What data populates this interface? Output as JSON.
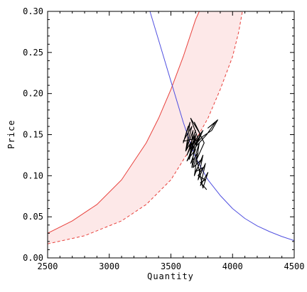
{
  "chart_data": {
    "type": "line",
    "title": "",
    "xlabel": "Quantity",
    "ylabel": "Price",
    "xlim": [
      2500,
      4500
    ],
    "ylim": [
      0.0,
      0.3
    ],
    "xticks": [
      "2500",
      "3000",
      "3500",
      "4000",
      "4500"
    ],
    "yticks": [
      "0.00",
      "0.05",
      "0.10",
      "0.15",
      "0.20",
      "0.25",
      "0.30"
    ],
    "grid": false,
    "legend": "none",
    "band": {
      "fill_color": "#fde8e8",
      "upper_color": "#e8413c",
      "lower_color": "#e8413c",
      "upper": {
        "x": [
          2500,
          2700,
          2900,
          3100,
          3300,
          3400,
          3500,
          3600,
          3700,
          3730
        ],
        "y": [
          0.03,
          0.045,
          0.065,
          0.095,
          0.14,
          0.17,
          0.205,
          0.245,
          0.29,
          0.3
        ]
      },
      "lower": {
        "x": [
          2500,
          2800,
          3100,
          3300,
          3500,
          3700,
          3800,
          3900,
          4000,
          4050,
          4080
        ],
        "y": [
          0.017,
          0.027,
          0.045,
          0.065,
          0.095,
          0.143,
          0.17,
          0.205,
          0.245,
          0.275,
          0.3
        ]
      }
    },
    "series": [
      {
        "color": "#5050e0",
        "x": [
          3330,
          3400,
          3500,
          3550,
          3600,
          3650,
          3700,
          3800,
          3900,
          4000,
          4100,
          4200,
          4300,
          4400,
          4500
        ],
        "y": [
          0.3,
          0.265,
          0.215,
          0.19,
          0.165,
          0.143,
          0.122,
          0.095,
          0.076,
          0.06,
          0.048,
          0.039,
          0.032,
          0.026,
          0.021
        ]
      },
      {
        "color": "#000000",
        "x": [
          3610,
          3640,
          3600,
          3655,
          3620,
          3680,
          3650,
          3700,
          3670,
          3730,
          3690,
          3760,
          3720,
          3780,
          3740,
          3800,
          3760,
          3710,
          3770,
          3690,
          3740,
          3660,
          3720,
          3650,
          3700,
          3630,
          3690,
          3600,
          3670,
          3620,
          3700,
          3640,
          3680,
          3760,
          3700,
          3790,
          3860,
          3800,
          3880,
          3830,
          3760,
          3700,
          3740,
          3690,
          3720,
          3650,
          3700,
          3640,
          3680,
          3630,
          3700,
          3660,
          3720,
          3680,
          3750,
          3700,
          3760,
          3720,
          3780,
          3740,
          3790
        ],
        "y": [
          0.145,
          0.16,
          0.14,
          0.165,
          0.13,
          0.155,
          0.12,
          0.148,
          0.11,
          0.14,
          0.1,
          0.125,
          0.095,
          0.115,
          0.088,
          0.104,
          0.085,
          0.12,
          0.14,
          0.165,
          0.15,
          0.17,
          0.145,
          0.135,
          0.155,
          0.125,
          0.145,
          0.142,
          0.16,
          0.13,
          0.15,
          0.12,
          0.14,
          0.155,
          0.135,
          0.15,
          0.165,
          0.158,
          0.168,
          0.155,
          0.148,
          0.138,
          0.15,
          0.13,
          0.145,
          0.125,
          0.14,
          0.12,
          0.135,
          0.118,
          0.132,
          0.115,
          0.128,
          0.11,
          0.12,
          0.105,
          0.11,
          0.1,
          0.095,
          0.092,
          0.083
        ]
      }
    ]
  }
}
